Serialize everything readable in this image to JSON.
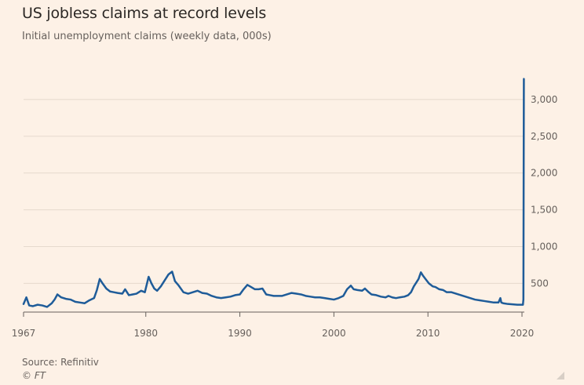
{
  "chart_data": {
    "type": "line",
    "title": "US jobless claims at record levels",
    "subtitle": "Initial unemployment claims (weekly data, 000s)",
    "xlabel": "",
    "ylabel": "",
    "xlim": [
      1967,
      2020.25
    ],
    "ylim": [
      110,
      3350
    ],
    "x_ticks": [
      1967,
      1980,
      1990,
      2000,
      2010,
      2020
    ],
    "y_ticks": [
      500,
      1000,
      1500,
      2000,
      2500,
      3000
    ],
    "y_tick_labels": [
      "500",
      "1,000",
      "1,500",
      "2,000",
      "2,500",
      "3,000"
    ],
    "y_axis_position": "right",
    "grid": "horizontal",
    "legend": "none",
    "series": [
      {
        "color": "#1f5c99",
        "x": [
          1967.0,
          1967.3,
          1967.6,
          1968.0,
          1968.5,
          1969.0,
          1969.5,
          1970.0,
          1970.3,
          1970.6,
          1971.0,
          1971.5,
          1972.0,
          1972.5,
          1973.0,
          1973.5,
          1974.0,
          1974.5,
          1974.8,
          1975.1,
          1975.4,
          1975.8,
          1976.2,
          1976.6,
          1977.0,
          1977.5,
          1977.8,
          1978.2,
          1978.6,
          1979.0,
          1979.5,
          1979.9,
          1980.3,
          1980.6,
          1980.9,
          1981.2,
          1981.6,
          1982.0,
          1982.4,
          1982.8,
          1983.1,
          1983.5,
          1984.0,
          1984.5,
          1985.0,
          1985.5,
          1986.0,
          1986.5,
          1987.0,
          1987.5,
          1988.0,
          1988.5,
          1989.0,
          1989.5,
          1990.0,
          1990.4,
          1990.8,
          1991.2,
          1991.6,
          1992.0,
          1992.4,
          1992.8,
          1993.2,
          1993.6,
          1994.0,
          1994.5,
          1995.0,
          1995.5,
          1996.0,
          1996.5,
          1997.0,
          1997.5,
          1998.0,
          1998.5,
          1999.0,
          1999.5,
          2000.0,
          2000.5,
          2001.0,
          2001.4,
          2001.8,
          2002.1,
          2002.5,
          2003.0,
          2003.3,
          2003.7,
          2004.0,
          2004.5,
          2005.0,
          2005.5,
          2005.8,
          2006.2,
          2006.6,
          2007.0,
          2007.5,
          2007.9,
          2008.2,
          2008.5,
          2008.8,
          2009.0,
          2009.25,
          2009.5,
          2009.8,
          2010.1,
          2010.5,
          2010.8,
          2011.2,
          2011.6,
          2012.0,
          2012.5,
          2013.0,
          2013.5,
          2014.0,
          2014.5,
          2015.0,
          2015.5,
          2016.0,
          2016.5,
          2017.0,
          2017.5,
          2017.7,
          2017.8,
          2018.0,
          2018.5,
          2019.0,
          2019.5,
          2019.9,
          2020.1,
          2020.15,
          2020.2
        ],
        "y": [
          220,
          310,
          200,
          190,
          210,
          200,
          180,
          230,
          280,
          350,
          310,
          290,
          280,
          250,
          240,
          230,
          270,
          300,
          410,
          560,
          500,
          430,
          390,
          380,
          370,
          360,
          420,
          340,
          350,
          360,
          400,
          380,
          590,
          500,
          430,
          400,
          460,
          540,
          620,
          660,
          530,
          470,
          380,
          360,
          380,
          400,
          370,
          360,
          330,
          310,
          300,
          310,
          320,
          340,
          350,
          420,
          480,
          450,
          420,
          420,
          430,
          350,
          340,
          330,
          330,
          330,
          350,
          370,
          360,
          350,
          330,
          320,
          310,
          310,
          300,
          290,
          280,
          300,
          330,
          420,
          470,
          420,
          410,
          400,
          430,
          380,
          350,
          340,
          320,
          310,
          330,
          310,
          300,
          310,
          320,
          340,
          380,
          460,
          520,
          560,
          650,
          600,
          550,
          500,
          460,
          450,
          420,
          410,
          380,
          380,
          360,
          340,
          320,
          300,
          280,
          270,
          260,
          250,
          240,
          240,
          300,
          240,
          230,
          220,
          215,
          210,
          210,
          210,
          280,
          3280
        ]
      }
    ],
    "source": "Source: Refinitiv",
    "credit": "© FT"
  }
}
